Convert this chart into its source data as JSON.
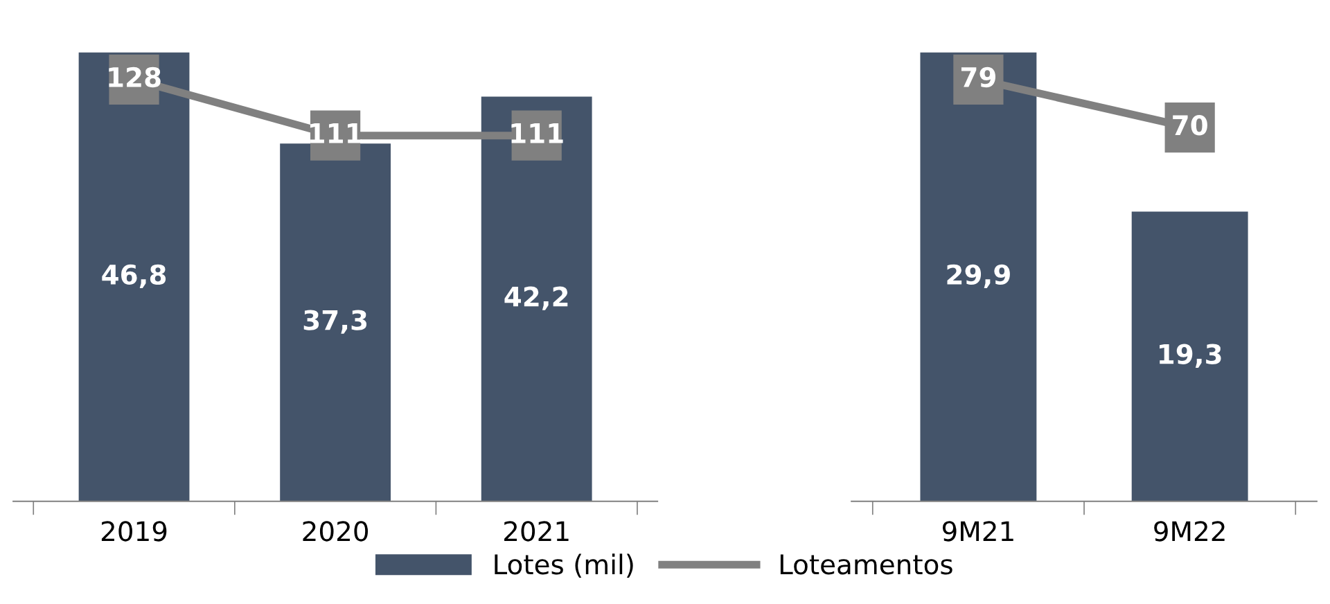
{
  "chart_data": [
    {
      "type": "bar",
      "categories": [
        "2019",
        "2020",
        "2021"
      ],
      "data_labels": true,
      "legend": "bottom",
      "grid": false,
      "tick_labels": "x",
      "series": [
        {
          "name": "Lotes (mil)",
          "color": "#44546a",
          "values": [
            46.8,
            37.3,
            42.2
          ],
          "value_labels": [
            "46,8",
            "37,3",
            "42,2"
          ]
        },
        {
          "name": "Loteamentos",
          "type": "line",
          "axis": "y2",
          "color": "#808080",
          "marker": "square",
          "line_style": "solid",
          "values": [
            128,
            111,
            111
          ]
        }
      ]
    },
    {
      "type": "bar",
      "categories": [
        "9M21",
        "9M22"
      ],
      "data_labels": true,
      "grid": false,
      "tick_labels": "x",
      "series": [
        {
          "color": "#44546a",
          "values": [
            29.9,
            19.3
          ],
          "value_labels": [
            "29,9",
            "19,3"
          ]
        },
        {
          "type": "line",
          "axis": "y2",
          "color": "#808080",
          "marker": "square",
          "line_style": "solid",
          "values": [
            79,
            70
          ]
        }
      ]
    }
  ]
}
